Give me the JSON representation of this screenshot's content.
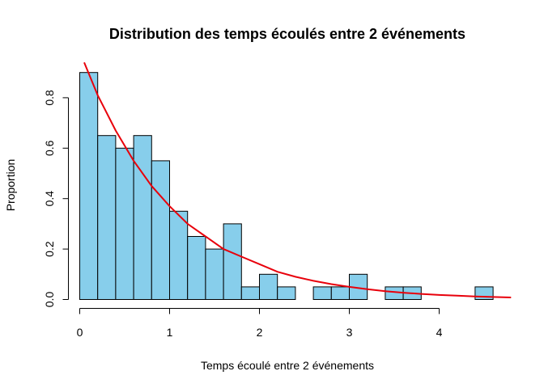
{
  "chart_data": {
    "type": "bar",
    "title": "Distribution des temps écoulés entre 2 événements",
    "xlabel": "Temps écoulé entre 2 événements",
    "ylabel": "Proportion",
    "xlim": [
      0,
      4.8
    ],
    "ylim": [
      0,
      0.95
    ],
    "xticks": [
      0,
      1,
      2,
      3,
      4
    ],
    "xtick_labels": [
      "0",
      "1",
      "2",
      "3",
      "4"
    ],
    "yticks": [
      0,
      0.2,
      0.4,
      0.6,
      0.8
    ],
    "ytick_labels": [
      "0.0",
      "0.2",
      "0.4",
      "0.6",
      "0.8"
    ],
    "grid": false,
    "bar_color": "#87CEEB",
    "curve_color": "#E8000B",
    "bins": [
      {
        "x0": 0.0,
        "x1": 0.2,
        "value": 0.9
      },
      {
        "x0": 0.2,
        "x1": 0.4,
        "value": 0.65
      },
      {
        "x0": 0.4,
        "x1": 0.6,
        "value": 0.6
      },
      {
        "x0": 0.6,
        "x1": 0.8,
        "value": 0.65
      },
      {
        "x0": 0.8,
        "x1": 1.0,
        "value": 0.55
      },
      {
        "x0": 1.0,
        "x1": 1.2,
        "value": 0.35
      },
      {
        "x0": 1.2,
        "x1": 1.4,
        "value": 0.25
      },
      {
        "x0": 1.4,
        "x1": 1.6,
        "value": 0.2
      },
      {
        "x0": 1.6,
        "x1": 1.8,
        "value": 0.3
      },
      {
        "x0": 1.8,
        "x1": 2.0,
        "value": 0.05
      },
      {
        "x0": 2.0,
        "x1": 2.2,
        "value": 0.1
      },
      {
        "x0": 2.2,
        "x1": 2.4,
        "value": 0.05
      },
      {
        "x0": 2.4,
        "x1": 2.6,
        "value": 0.0
      },
      {
        "x0": 2.6,
        "x1": 2.8,
        "value": 0.05
      },
      {
        "x0": 2.8,
        "x1": 3.0,
        "value": 0.05
      },
      {
        "x0": 3.0,
        "x1": 3.2,
        "value": 0.1
      },
      {
        "x0": 3.2,
        "x1": 3.4,
        "value": 0.0
      },
      {
        "x0": 3.4,
        "x1": 3.6,
        "value": 0.05
      },
      {
        "x0": 3.6,
        "x1": 3.8,
        "value": 0.05
      },
      {
        "x0": 3.8,
        "x1": 4.0,
        "value": 0.0
      },
      {
        "x0": 4.0,
        "x1": 4.2,
        "value": 0.0
      },
      {
        "x0": 4.2,
        "x1": 4.4,
        "value": 0.0
      },
      {
        "x0": 4.4,
        "x1": 4.6,
        "value": 0.05
      }
    ],
    "curve": {
      "type": "line",
      "x": [
        0.05,
        0.2,
        0.4,
        0.6,
        0.8,
        1.0,
        1.2,
        1.4,
        1.6,
        1.8,
        2.0,
        2.2,
        2.4,
        2.6,
        2.8,
        3.0,
        3.2,
        3.4,
        3.6,
        3.8,
        4.0,
        4.2,
        4.4,
        4.6,
        4.8
      ],
      "y": [
        0.94,
        0.81,
        0.67,
        0.55,
        0.45,
        0.37,
        0.3,
        0.25,
        0.2,
        0.17,
        0.14,
        0.11,
        0.09,
        0.074,
        0.061,
        0.05,
        0.041,
        0.033,
        0.027,
        0.022,
        0.018,
        0.015,
        0.012,
        0.01,
        0.008
      ]
    }
  }
}
